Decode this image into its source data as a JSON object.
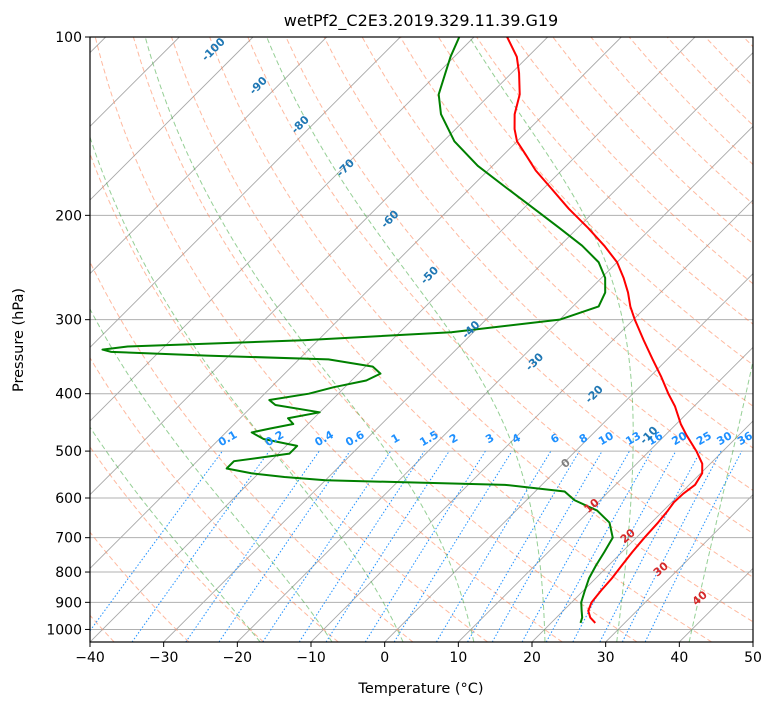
{
  "chart_data": {
    "type": "line",
    "subtype": "skew-t log-p diagram",
    "title": "wetPf2_C2E3.2019.329.11.39.G19",
    "xlabel": "Temperature (°C)",
    "ylabel": "Pressure (hPa)",
    "xlim": [
      -40,
      50
    ],
    "ylim": [
      1050,
      100
    ],
    "y_scale": "log",
    "x_ticks": [
      -40,
      -30,
      -20,
      -10,
      0,
      10,
      20,
      30,
      40,
      50
    ],
    "y_ticks": [
      100,
      200,
      300,
      400,
      500,
      600,
      700,
      800,
      900,
      1000
    ],
    "grid": true,
    "series": [
      {
        "name": "",
        "color": "#ff0000",
        "pressure": [
          975,
          955,
          930,
          900,
          860,
          820,
          780,
          740,
          700,
          660,
          630,
          610,
          590,
          570,
          545,
          525,
          500,
          470,
          450,
          420,
          400,
          375,
          350,
          325,
          300,
          285,
          270,
          255,
          240,
          225,
          210,
          195,
          180,
          168,
          158,
          150,
          143,
          135,
          125,
          115,
          108,
          100
        ],
        "temperature": [
          26.0,
          24.6,
          23.4,
          22.7,
          22.4,
          22.2,
          21.8,
          21.4,
          21.1,
          20.9,
          20.6,
          20.3,
          20.4,
          20.8,
          20.2,
          18.9,
          16.4,
          12.9,
          10.6,
          7.4,
          4.8,
          1.6,
          -2.0,
          -5.8,
          -9.8,
          -12.2,
          -14.4,
          -17.0,
          -20.0,
          -24.0,
          -28.6,
          -33.8,
          -39.0,
          -43.5,
          -47.0,
          -50.0,
          -52.0,
          -54.0,
          -56.0,
          -59.0,
          -61.5,
          -65.5
        ]
      },
      {
        "name": "",
        "color": "#008000",
        "pressure": [
          975,
          955,
          930,
          900,
          860,
          820,
          780,
          740,
          700,
          660,
          630,
          605,
          585,
          570,
          560,
          553,
          545,
          535,
          520,
          505,
          490,
          477,
          465,
          458,
          450,
          440,
          430,
          418,
          410,
          400,
          390,
          380,
          370,
          360,
          350,
          345,
          340,
          337,
          333,
          325,
          315,
          300,
          285,
          270,
          255,
          240,
          225,
          210,
          195,
          180,
          165,
          150,
          135,
          125,
          115,
          108,
          100
        ],
        "temperature": [
          24.0,
          23.5,
          22.5,
          21.3,
          20.2,
          19.1,
          18.3,
          17.6,
          16.8,
          14.3,
          11.0,
          6.5,
          4.0,
          -5.0,
          -30.0,
          -36.0,
          -41.0,
          -45.0,
          -45.0,
          -38.5,
          -38.5,
          -44.0,
          -46.5,
          -44.5,
          -42.0,
          -43.5,
          -40.0,
          -47.0,
          -48.5,
          -44.0,
          -41.5,
          -38.0,
          -37.0,
          -39.0,
          -46.0,
          -63.0,
          -76.5,
          -78.0,
          -75.0,
          -52.0,
          -33.0,
          -20.0,
          -16.5,
          -17.5,
          -19.5,
          -22.5,
          -27.0,
          -32.5,
          -38.5,
          -45.0,
          -52.0,
          -58.5,
          -64.0,
          -67.0,
          -69.0,
          -70.5,
          -72.0
        ]
      }
    ],
    "skew_lines": {
      "temp_c": [
        -130,
        -120,
        -110,
        -100,
        -90,
        -80,
        -70,
        -60,
        -50,
        -40,
        -30,
        -20,
        -10,
        0,
        10,
        20,
        30,
        40,
        50
      ],
      "color": "#a8a8a8"
    },
    "dry_adiabats": {
      "theta_c": [
        -100,
        -90,
        -80,
        -70,
        -60,
        -50,
        -40,
        -30,
        -20,
        -10,
        0,
        10,
        20,
        30,
        40,
        50,
        60,
        70,
        80,
        90,
        100,
        110,
        120,
        130,
        140,
        150,
        160,
        170,
        180,
        190,
        200,
        210,
        220,
        230
      ],
      "labels": [
        "-100",
        "-90",
        "-80",
        "-70",
        "-60",
        "-50",
        "-40",
        "-30",
        "-20",
        "-10",
        "0",
        "10",
        "20",
        "30",
        "40"
      ],
      "color": "#ff7f50"
    },
    "moist_adiabats": {
      "temp_c_at_1000hPa": [
        -20,
        -10,
        0,
        10,
        20,
        30,
        40
      ],
      "labels": [
        "0",
        "10",
        "20",
        "30",
        "40"
      ],
      "color": "#2ca02c"
    },
    "mixing_ratios": {
      "values": [
        0.1,
        0.2,
        0.4,
        0.6,
        1,
        1.5,
        2,
        3,
        4,
        6,
        8,
        10,
        13,
        16,
        20,
        25,
        30,
        36
      ],
      "labels": [
        "0.1",
        "0.2",
        "0.4",
        "0.6",
        "1",
        "1.5",
        "2",
        "3",
        "4",
        "6",
        "8",
        "10",
        "13",
        "16",
        "20",
        "25",
        "30",
        "36"
      ],
      "color": "#1e90ff"
    },
    "dry_adiabat_labels": [
      {
        "text": "-100",
        "t": -103,
        "p": 106
      },
      {
        "text": "-90",
        "t": -92,
        "p": 122
      },
      {
        "text": "-80",
        "t": -81,
        "p": 142
      },
      {
        "text": "-70",
        "t": -69,
        "p": 168
      },
      {
        "text": "-60",
        "t": -56,
        "p": 205
      },
      {
        "text": "-50",
        "t": -43,
        "p": 255
      },
      {
        "text": "-40",
        "t": -30,
        "p": 315
      },
      {
        "text": "-30",
        "t": -17,
        "p": 357
      },
      {
        "text": "-20",
        "t": -4.5,
        "p": 405
      },
      {
        "text": "-10",
        "t": 8.5,
        "p": 475
      }
    ],
    "moist_adiabat_labels": [
      {
        "text": "0",
        "t": 1,
        "p": 530,
        "gray": true
      },
      {
        "text": "10",
        "t": 10.3,
        "p": 625
      },
      {
        "text": "20",
        "t": 19.3,
        "p": 703
      },
      {
        "text": "30",
        "t": 28.3,
        "p": 800
      },
      {
        "text": "40",
        "t": 37.5,
        "p": 895
      }
    ],
    "mixing_ratio_label_pressure": 482
  }
}
